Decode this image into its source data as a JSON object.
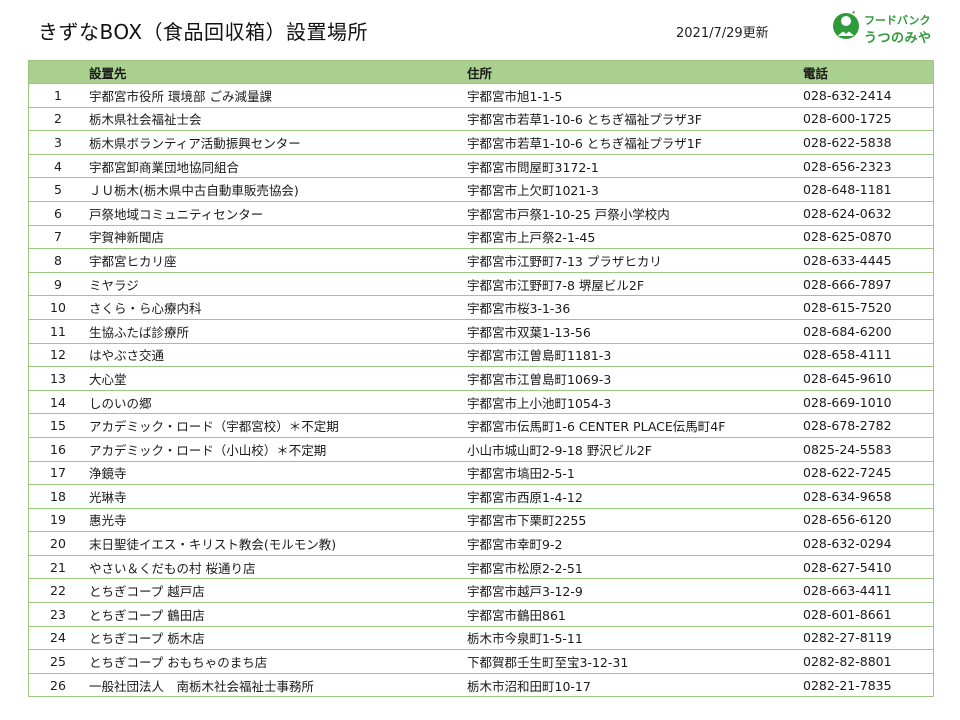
{
  "header": {
    "title": "きずなBOX（食品回収箱）設置場所",
    "updated": "2021/7/29更新"
  },
  "logo": {
    "line1": "フードバンク",
    "line2": "うつのみや",
    "icon": "person-with-heart-icon",
    "color": "#2f9a3a"
  },
  "table": {
    "header_color": "#a9d08e",
    "columns": [
      "",
      "設置先",
      "住所",
      "電話"
    ],
    "rows": [
      {
        "no": "1",
        "name": "宇都宮市役所 環境部 ごみ減量課",
        "address": "宇都宮市旭1-1-5",
        "phone": "028-632-2414"
      },
      {
        "no": "2",
        "name": "栃木県社会福祉士会",
        "address": "宇都宮市若草1-10-6 とちぎ福祉プラザ3F",
        "phone": "028-600-1725"
      },
      {
        "no": "3",
        "name": "栃木県ボランティア活動振興センター",
        "address": "宇都宮市若草1-10-6 とちぎ福祉プラザ1F",
        "phone": "028-622-5838"
      },
      {
        "no": "4",
        "name": "宇都宮卸商業団地協同組合",
        "address": "宇都宮市問屋町3172-1",
        "phone": "028-656-2323"
      },
      {
        "no": "5",
        "name": "ＪＵ栃木(栃木県中古自動車販売協会)",
        "address": "宇都宮市上欠町1021-3",
        "phone": "028-648-1181"
      },
      {
        "no": "6",
        "name": "戸祭地域コミュニティセンター",
        "address": "宇都宮市戸祭1-10-25 戸祭小学校内",
        "phone": "028-624-0632"
      },
      {
        "no": "7",
        "name": "宇賀神新聞店",
        "address": "宇都宮市上戸祭2-1-45",
        "phone": "028-625-0870"
      },
      {
        "no": "8",
        "name": "宇都宮ヒカリ座",
        "address": "宇都宮市江野町7-13 プラザヒカリ",
        "phone": "028-633-4445"
      },
      {
        "no": "9",
        "name": "ミヤラジ",
        "address": "宇都宮市江野町7-8 堺屋ビル2F",
        "phone": "028-666-7897"
      },
      {
        "no": "10",
        "name": "さくら・ら心療内科",
        "address": "宇都宮市桜3-1-36",
        "phone": "028-615-7520"
      },
      {
        "no": "11",
        "name": "生協ふたば診療所",
        "address": "宇都宮市双葉1-13-56",
        "phone": "028-684-6200"
      },
      {
        "no": "12",
        "name": "はやぶさ交通",
        "address": "宇都宮市江曽島町1181-3",
        "phone": "028-658-4111"
      },
      {
        "no": "13",
        "name": "大心堂",
        "address": "宇都宮市江曽島町1069-3",
        "phone": "028-645-9610"
      },
      {
        "no": "14",
        "name": "しのいの郷",
        "address": "宇都宮市上小池町1054-3",
        "phone": "028-669-1010"
      },
      {
        "no": "15",
        "name": "アカデミック・ロード（宇都宮校）＊不定期",
        "address": "宇都宮市伝馬町1-6 CENTER PLACE伝馬町4F",
        "phone": "028-678-2782"
      },
      {
        "no": "16",
        "name": "アカデミック・ロード（小山校）＊不定期",
        "address": "小山市城山町2-9-18 野沢ビル2F",
        "phone": "0825-24-5583"
      },
      {
        "no": "17",
        "name": "浄鏡寺",
        "address": "宇都宮市塙田2-5-1",
        "phone": "028-622-7245"
      },
      {
        "no": "18",
        "name": "光琳寺",
        "address": "宇都宮市西原1-4-12",
        "phone": "028-634-9658"
      },
      {
        "no": "19",
        "name": "惠光寺",
        "address": "宇都宮市下栗町2255",
        "phone": "028-656-6120"
      },
      {
        "no": "20",
        "name": "末日聖徒イエス・キリスト教会(モルモン教)",
        "address": "宇都宮市幸町9-2",
        "phone": "028-632-0294"
      },
      {
        "no": "21",
        "name": "やさい＆くだもの村 桜通り店",
        "address": "宇都宮市松原2-2-51",
        "phone": "028-627-5410"
      },
      {
        "no": "22",
        "name": "とちぎコープ 越戸店",
        "address": "宇都宮市越戸3-12-9",
        "phone": "028-663-4411"
      },
      {
        "no": "23",
        "name": "とちぎコープ 鶴田店",
        "address": "宇都宮市鶴田861",
        "phone": "028-601-8661"
      },
      {
        "no": "24",
        "name": "とちぎコープ 栃木店",
        "address": "栃木市今泉町1-5-11",
        "phone": "0282-27-8119"
      },
      {
        "no": "25",
        "name": "とちぎコープ おもちゃのまち店",
        "address": "下都賀郡壬生町至宝3-12-31",
        "phone": "0282-82-8801"
      },
      {
        "no": "26",
        "name": "一般社団法人　南栃木社会福祉士事務所",
        "address": "栃木市沼和田町10-17",
        "phone": "0282-21-7835"
      }
    ]
  }
}
